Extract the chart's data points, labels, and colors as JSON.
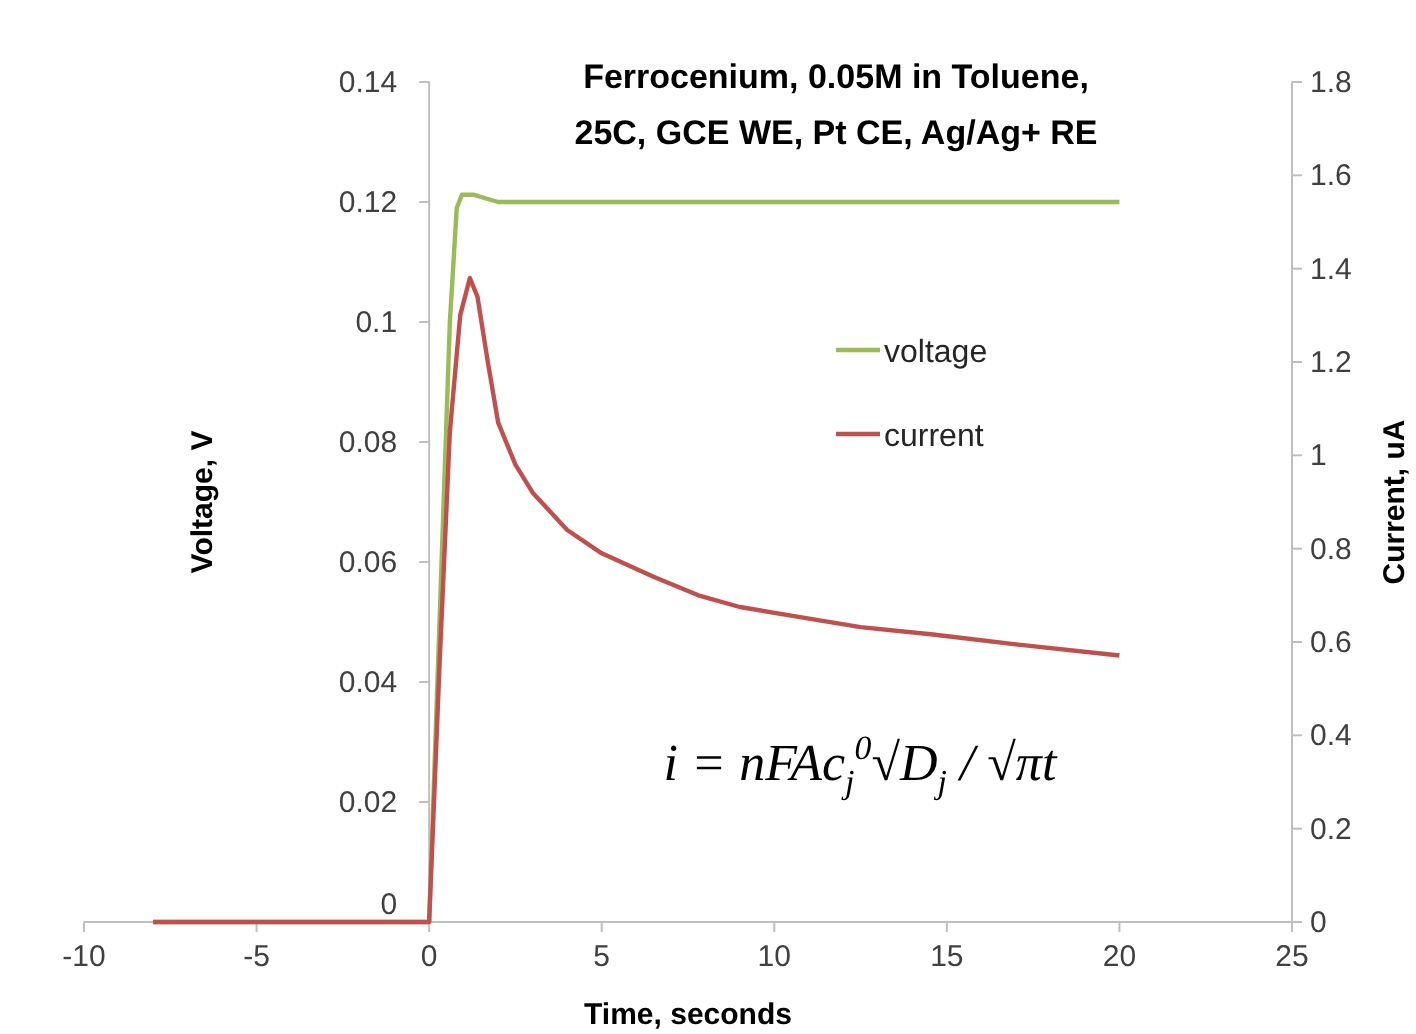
{
  "chart_data": {
    "type": "line",
    "title": "Ferrocenium, 0.05M in Toluene,\n25C, GCE WE, Pt CE, Ag/Ag+ RE",
    "xlabel": "Time, seconds",
    "ylabel": "Voltage, V",
    "y2label": "Current, uA",
    "xlim": [
      -10,
      25
    ],
    "xticks": [
      -10,
      -5,
      0,
      5,
      10,
      15,
      20,
      25
    ],
    "ylim": [
      0,
      0.14
    ],
    "yticks": [
      0,
      0.02,
      0.04,
      0.06,
      0.08,
      {
        "value": 0.1,
        "label": "0.1"
      },
      0.12,
      0.14
    ],
    "y2lim": [
      0,
      1.8
    ],
    "y2ticks": [
      0,
      0.2,
      0.4,
      0.6,
      0.8,
      1,
      1.2,
      1.4,
      1.6,
      1.8
    ],
    "grid": false,
    "legend": "right",
    "marker": "none",
    "line_style": "solid",
    "series": [
      {
        "name": "voltage",
        "color": "#9bbb59",
        "x": [
          -8,
          0,
          0.3,
          0.6,
          0.8,
          0.95,
          1.3,
          1.7,
          2,
          5,
          10,
          15,
          20
        ],
        "values": [
          0,
          0,
          0.05,
          0.1,
          0.119,
          0.1212,
          0.1212,
          0.1205,
          0.12,
          0.12,
          0.12,
          0.12,
          0.12
        ]
      },
      {
        "name": "current",
        "color": "#c0504d",
        "axis": "y2",
        "x": [
          -8,
          0,
          0.3,
          0.6,
          0.9,
          1.18,
          1.4,
          1.7,
          2.0,
          2.5,
          3.0,
          4.0,
          5.0,
          6.5,
          7.8,
          9.0,
          10.7,
          12.5,
          14.6,
          17,
          20
        ],
        "values": [
          0,
          0,
          0.55,
          1.05,
          1.3,
          1.38,
          1.34,
          1.2,
          1.07,
          0.98,
          0.92,
          0.84,
          0.79,
          0.74,
          0.7,
          0.675,
          0.654,
          0.632,
          0.616,
          0.595,
          0.571
        ]
      }
    ],
    "annotations": [
      "i = nFAc$_{j}$$^{0}$√D$_{j}$ / √πt"
    ]
  }
}
